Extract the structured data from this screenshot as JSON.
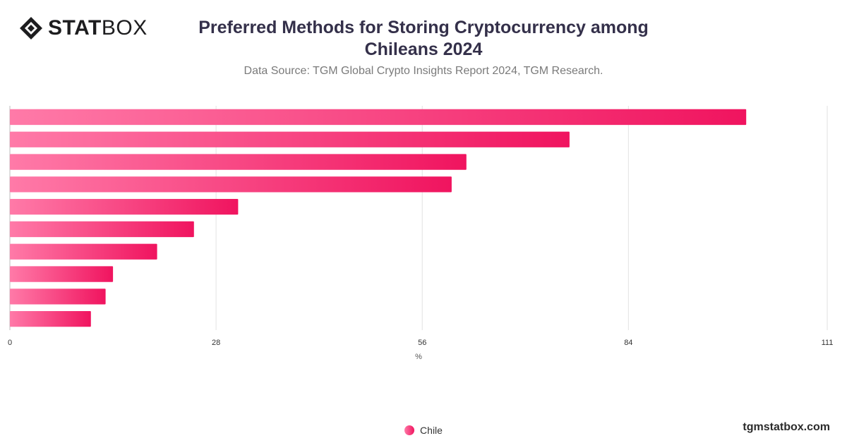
{
  "logo": {
    "bold": "STAT",
    "light": "BOX",
    "icon": "diamond-logo-icon"
  },
  "title": "Preferred Methods for Storing Cryptocurrency among Chileans 2024",
  "subtitle": "Data Source: TGM Global Crypto Insights Report 2024, TGM Research.",
  "brand": "tgmstatbox.com",
  "legend": {
    "label": "Chile"
  },
  "colors": {
    "bar_start": "#ff7aa8",
    "bar_end": "#f0145f",
    "grid": "#e2e2e2",
    "tick": "#333333"
  },
  "chart_data": {
    "type": "bar",
    "orientation": "horizontal",
    "series": [
      {
        "name": "Chile",
        "values": [
          100,
          76,
          62,
          60,
          31,
          25,
          20,
          14,
          13,
          11
        ]
      }
    ],
    "xlabel": "%",
    "xlim": [
      0,
      111
    ],
    "xticks": [
      0,
      28,
      56,
      84,
      111
    ],
    "grid": true,
    "legend_position": "bottom-center"
  }
}
